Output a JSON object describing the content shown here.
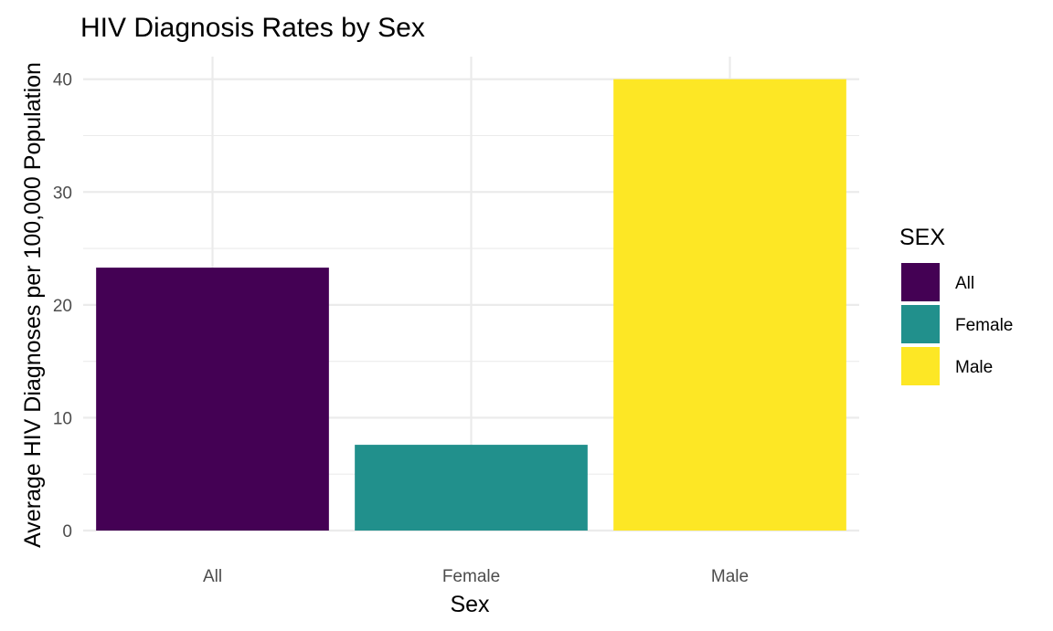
{
  "chart_data": {
    "type": "bar",
    "title": "HIV Diagnosis Rates by Sex",
    "xlabel": "Sex",
    "ylabel": "Average HIV Diagnoses per 100,000 Population",
    "categories": [
      "All",
      "Female",
      "Male"
    ],
    "values": [
      23.3,
      7.6,
      40.0
    ],
    "colors": [
      "#440154",
      "#21908C",
      "#FDE725"
    ],
    "ylim": [
      0,
      42
    ],
    "yticks": [
      0,
      10,
      20,
      30,
      40
    ],
    "grid": true,
    "legend": {
      "title": "SEX",
      "position": "right",
      "items": [
        "All",
        "Female",
        "Male"
      ]
    }
  }
}
